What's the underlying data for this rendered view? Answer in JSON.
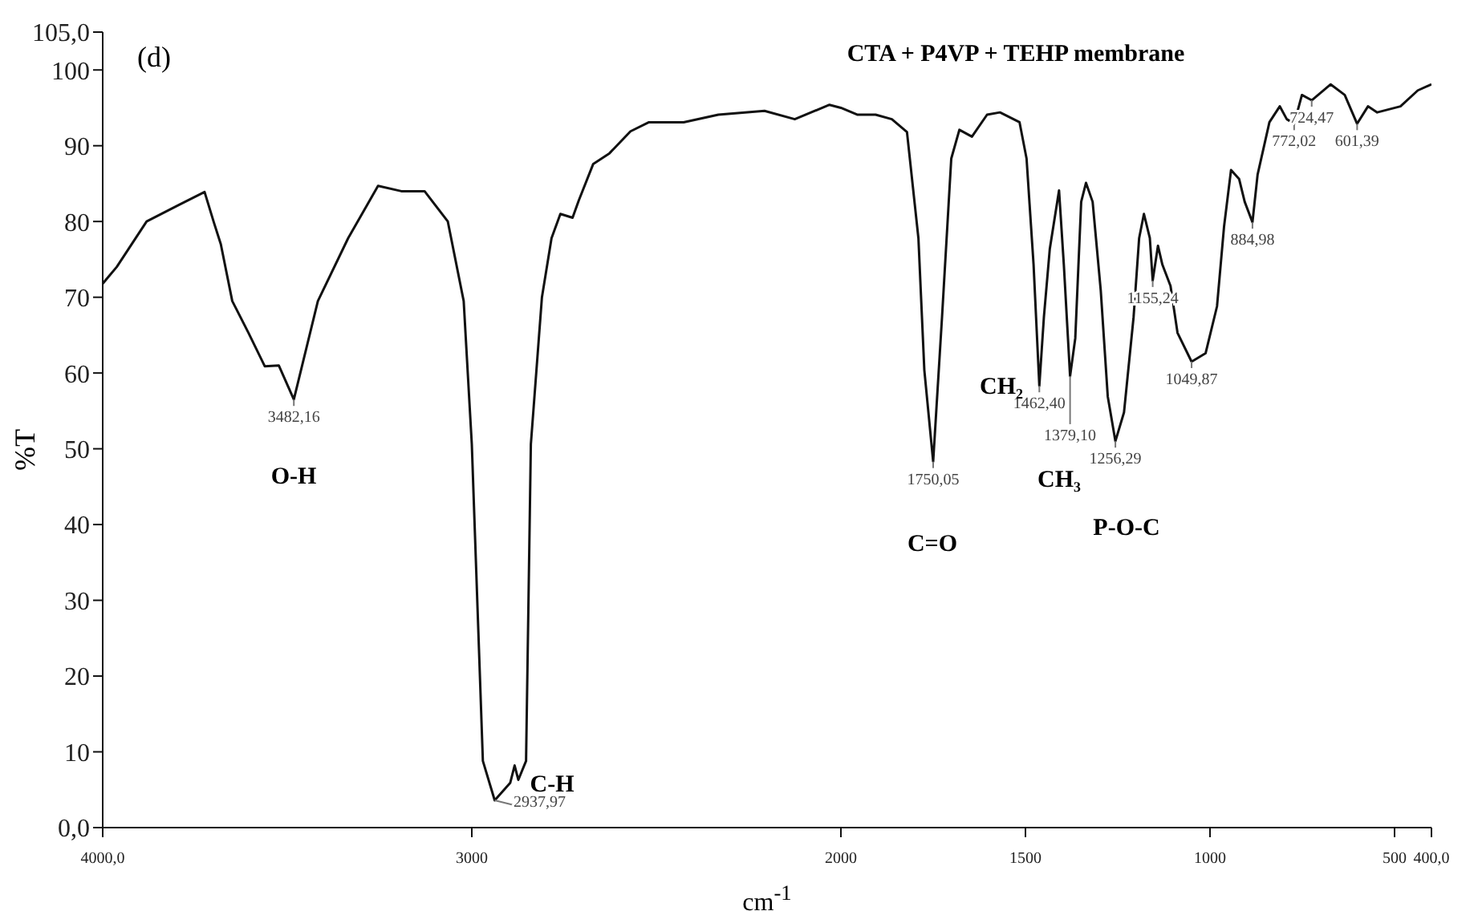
{
  "chart_data": {
    "type": "line",
    "title": "CTA + P4VP + TEHP membrane",
    "xlabel": "cm$^{-1}$",
    "ylabel": "%T",
    "color": "#111111",
    "x": [
      4000,
      3962,
      3881,
      3793,
      3724,
      3699,
      3680,
      3649,
      3605,
      3561,
      3523,
      3482.16,
      3417,
      3335,
      3254,
      3191,
      3128,
      3065,
      3022,
      3000,
      2970,
      2937.97,
      2896,
      2884,
      2874,
      2853,
      2840,
      2810,
      2784,
      2760,
      2727,
      2710,
      2671,
      2627,
      2570,
      2520,
      2426,
      2332,
      2207,
      2125,
      2031,
      2000,
      1956,
      1906,
      1862,
      1821,
      1790,
      1774,
      1750.05,
      1726,
      1701,
      1679,
      1645,
      1604,
      1569,
      1516,
      1497,
      1478,
      1462.4,
      1450,
      1434,
      1409,
      1396,
      1379.1,
      1365,
      1349,
      1336,
      1318,
      1296,
      1277,
      1256.29,
      1233,
      1207,
      1192,
      1179,
      1163,
      1155.24,
      1141,
      1129,
      1107,
      1088,
      1049.87,
      1012,
      981,
      962,
      943,
      921,
      906,
      884.98,
      871,
      839,
      811,
      792,
      772.02,
      751,
      724.47,
      673,
      635,
      601.39,
      572,
      547,
      484,
      437,
      400
    ],
    "values": [
      71.8,
      74,
      80,
      82.2,
      83.9,
      79.9,
      77,
      69.5,
      65.3,
      60.9,
      61,
      56.5,
      69.5,
      77.8,
      84.7,
      84,
      84,
      80,
      69.5,
      50.6,
      8.8,
      3.6,
      5.9,
      8.2,
      6.3,
      8.8,
      50.6,
      70,
      77.8,
      81,
      80.5,
      82.8,
      87.6,
      89,
      91.9,
      93.1,
      93.1,
      94.1,
      94.6,
      93.5,
      95.4,
      95,
      94.1,
      94.1,
      93.5,
      91.8,
      77.8,
      60.4,
      48.3,
      67.4,
      88.3,
      92.1,
      91.2,
      94.1,
      94.4,
      93.1,
      88.3,
      74.3,
      58.3,
      67.4,
      76.4,
      84.1,
      74.3,
      59.6,
      64.6,
      82.6,
      85.1,
      82.6,
      70.9,
      56.9,
      51,
      54.8,
      67.4,
      77.8,
      81,
      77.8,
      72.2,
      76.8,
      74.3,
      71.5,
      65.3,
      61.5,
      62.6,
      68.8,
      79.3,
      86.8,
      85.6,
      82.6,
      79.9,
      86.2,
      93.1,
      95.2,
      93.5,
      92.9,
      96.7,
      96,
      98.1,
      96.7,
      92.9,
      95.2,
      94.4,
      95.2,
      97.3,
      98.1
    ],
    "xlim": [
      4000,
      400
    ],
    "ylim": [
      0,
      105
    ],
    "xticks": [
      {
        "value": 4000,
        "label": "4000,0"
      },
      3000,
      2000,
      1500,
      1000,
      500,
      {
        "value": 400,
        "label": "400,0"
      }
    ],
    "yticks": [
      {
        "value": 0,
        "label": "0,0"
      },
      10,
      20,
      30,
      40,
      50,
      60,
      70,
      80,
      90,
      100,
      {
        "value": 105,
        "label": "105,0"
      }
    ],
    "annotations": [
      "(d)",
      "O-H",
      "C-H",
      "C=O",
      "CH₂",
      "CH₃",
      "P-O-C",
      {
        "text": "3482,16",
        "x": 3482.16,
        "y": 56.5
      },
      {
        "text": "2937,97",
        "x": 2937.97,
        "y": 3.6
      },
      {
        "text": "1750,05",
        "x": 1750.05,
        "y": 48.3
      },
      {
        "text": "1462,40",
        "x": 1462.4,
        "y": 58.3
      },
      {
        "text": "1379,10",
        "x": 1379.1,
        "y": 59.6
      },
      {
        "text": "1256,29",
        "x": 1256.29,
        "y": 51
      },
      {
        "text": "1155,24",
        "x": 1155.24,
        "y": 72.2
      },
      {
        "text": "1049,87",
        "x": 1049.87,
        "y": 61.5
      },
      {
        "text": "884,98",
        "x": 884.98,
        "y": 79.9
      },
      {
        "text": "772,02",
        "x": 772.02,
        "y": 92.9
      },
      {
        "text": "724,47",
        "x": 724.47,
        "y": 96
      },
      {
        "text": "601,39",
        "x": 601.39,
        "y": 92.9
      }
    ]
  }
}
